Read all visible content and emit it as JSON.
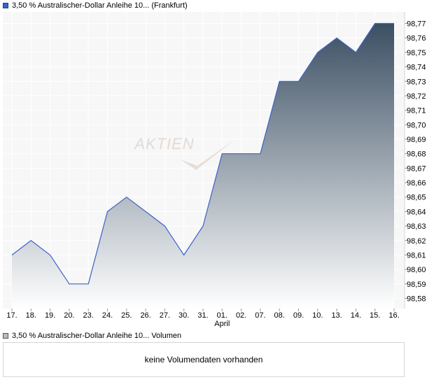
{
  "legend": {
    "price_label": "3,50 % Australischer-Dollar Anleihe 10... (Frankfurt)",
    "volume_label": "3,50 % Australischer-Dollar Anleihe 10... Volumen"
  },
  "volume_panel": {
    "message": "keine Volumendaten vorhanden"
  },
  "watermark": "AKTIEN",
  "colors": {
    "line": "#3a64c8",
    "fill_top": "#3b4f63",
    "fill_bottom": "#ffffff",
    "plot_bg": "#f7f7f7",
    "grid": "#ffffff"
  },
  "chart_data": {
    "type": "area",
    "categories": [
      "17.",
      "18.",
      "19.",
      "20.",
      "23.",
      "24.",
      "25.",
      "26.",
      "27.",
      "30.",
      "31.",
      "01.",
      "02.",
      "07.",
      "08.",
      "09.",
      "10.",
      "13.",
      "14.",
      "15.",
      "16."
    ],
    "x_sublabel": {
      "category": "01.",
      "text": "April"
    },
    "series": [
      {
        "values": [
          98.61,
          98.62,
          98.61,
          98.59,
          98.59,
          98.64,
          98.65,
          98.64,
          98.63,
          98.61,
          98.63,
          98.68,
          98.68,
          98.68,
          98.73,
          98.73,
          98.75,
          98.76,
          98.75,
          98.77,
          98.77
        ]
      }
    ],
    "y_ticks": [
      98.58,
      98.59,
      98.6,
      98.61,
      98.62,
      98.63,
      98.64,
      98.65,
      98.66,
      98.67,
      98.68,
      98.69,
      98.7,
      98.71,
      98.72,
      98.73,
      98.74,
      98.75,
      98.76,
      98.77
    ],
    "y_tick_labels": [
      "98,58",
      "98,59",
      "98,60",
      "98,61",
      "98,62",
      "98,63",
      "98,64",
      "98,65",
      "98,66",
      "98,67",
      "98,68",
      "98,69",
      "98,70",
      "98,71",
      "98,72",
      "98,73",
      "98,74",
      "98,75",
      "98,76",
      "98,77"
    ],
    "ylim": [
      98.573,
      98.778
    ],
    "grid": true,
    "y_axis_side": "right"
  }
}
